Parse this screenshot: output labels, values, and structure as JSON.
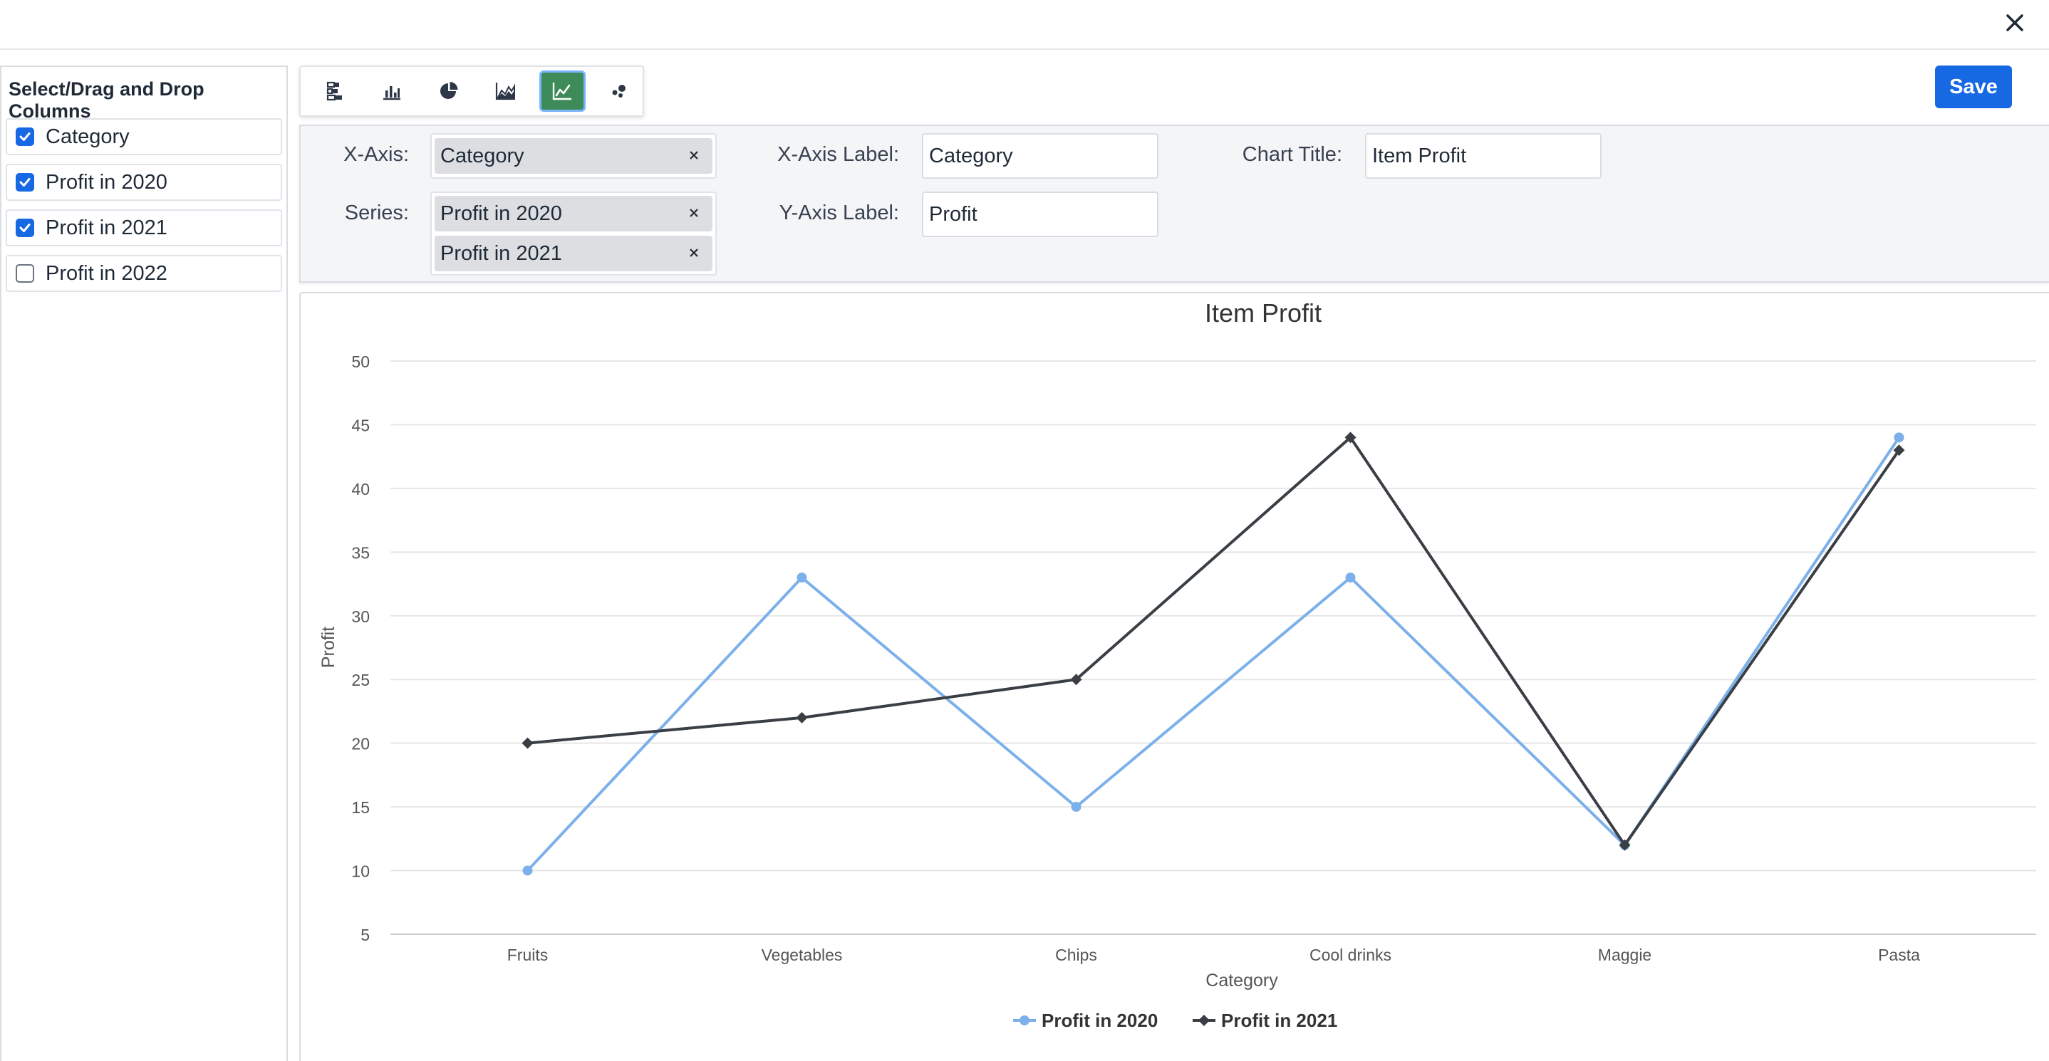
{
  "header": {
    "close_icon": "close-icon"
  },
  "sidebar": {
    "title": "Select/Drag and Drop Columns",
    "columns": [
      {
        "label": "Category",
        "checked": true
      },
      {
        "label": "Profit in 2020",
        "checked": true
      },
      {
        "label": "Profit in 2021",
        "checked": true
      },
      {
        "label": "Profit in 2022",
        "checked": false
      }
    ]
  },
  "toolbar": {
    "chart_types": [
      "stacked-bar-icon",
      "bar-chart-icon",
      "pie-chart-icon",
      "area-chart-icon",
      "line-chart-icon",
      "scatter-chart-icon"
    ],
    "active": "line-chart-icon",
    "save_label": "Save"
  },
  "config": {
    "x_axis_label": "X-Axis:",
    "x_axis_value": "Category",
    "series_label": "Series:",
    "series_values": [
      "Profit in 2020",
      "Profit in 2021"
    ],
    "x_axis_title_label": "X-Axis Label:",
    "x_axis_title_value": "Category",
    "y_axis_title_label": "Y-Axis Label:",
    "y_axis_title_value": "Profit",
    "chart_title_label": "Chart Title:",
    "chart_title_value": "Item Profit"
  },
  "chart_data": {
    "type": "line",
    "title": "Item Profit",
    "xlabel": "Category",
    "ylabel": "Profit",
    "categories": [
      "Fruits",
      "Vegetables",
      "Chips",
      "Cool drinks",
      "Maggie",
      "Pasta"
    ],
    "series": [
      {
        "name": "Profit in 2020",
        "values": [
          10,
          33,
          15,
          33,
          12,
          44
        ],
        "color": "#7cb0ea",
        "marker": "circle"
      },
      {
        "name": "Profit in 2021",
        "values": [
          20,
          22,
          25,
          44,
          12,
          43
        ],
        "color": "#3a3f45",
        "marker": "diamond"
      }
    ],
    "ylim": [
      5,
      50
    ],
    "yticks": [
      5,
      10,
      15,
      20,
      25,
      30,
      35,
      40,
      45,
      50
    ],
    "grid": true,
    "legend": "bottom-center"
  }
}
